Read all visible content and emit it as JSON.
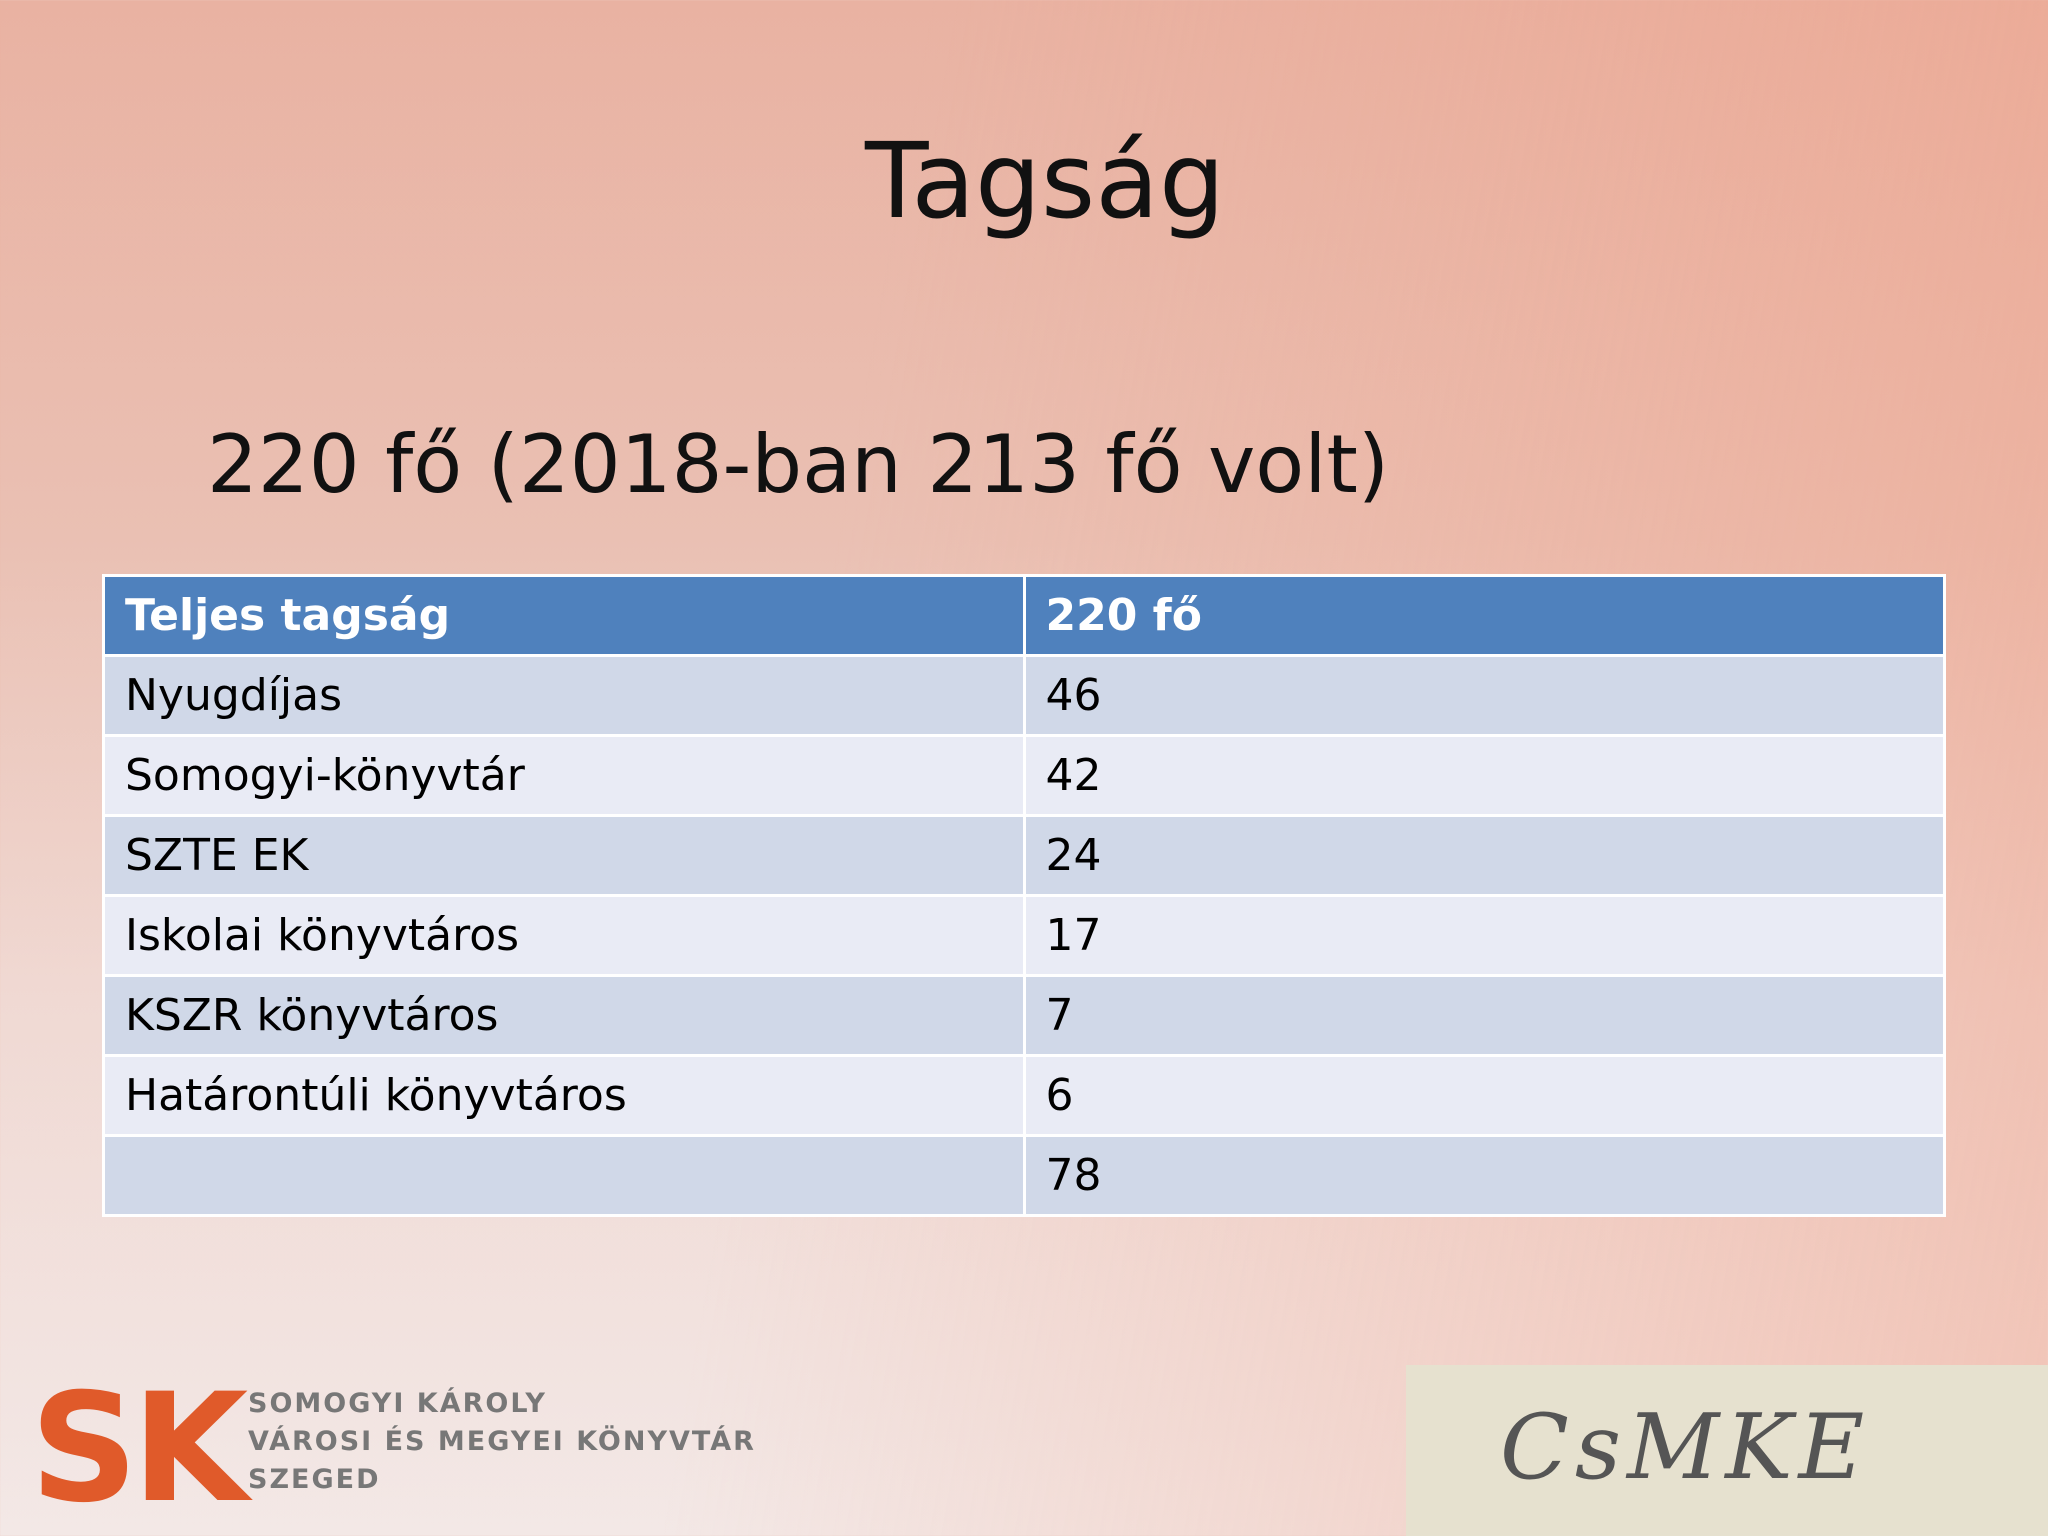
{
  "slide": {
    "title": "Tagság",
    "subtitle": "220 fő (2018-ban 213 fő volt)",
    "table": {
      "header": [
        "Teljes tagság",
        "220 fő"
      ],
      "rows": [
        [
          "Nyugdíjas",
          46
        ],
        [
          "Somogyi-könyvtár",
          42
        ],
        [
          "SZTE EK",
          24
        ],
        [
          "Iskolai könyvtáros",
          17
        ],
        [
          "KSZR könyvtáros",
          7
        ],
        [
          "Határontúli könyvtáros",
          6
        ],
        [
          null,
          78
        ]
      ]
    },
    "logo_left": {
      "mark": "SK",
      "lines": [
        "SOMOGYI KÁROLY",
        "VÁROSI ÉS MEGYEI KÖNYVTÁR",
        "SZEGED"
      ]
    },
    "logo_right": {
      "text": "CsMKE"
    }
  }
}
